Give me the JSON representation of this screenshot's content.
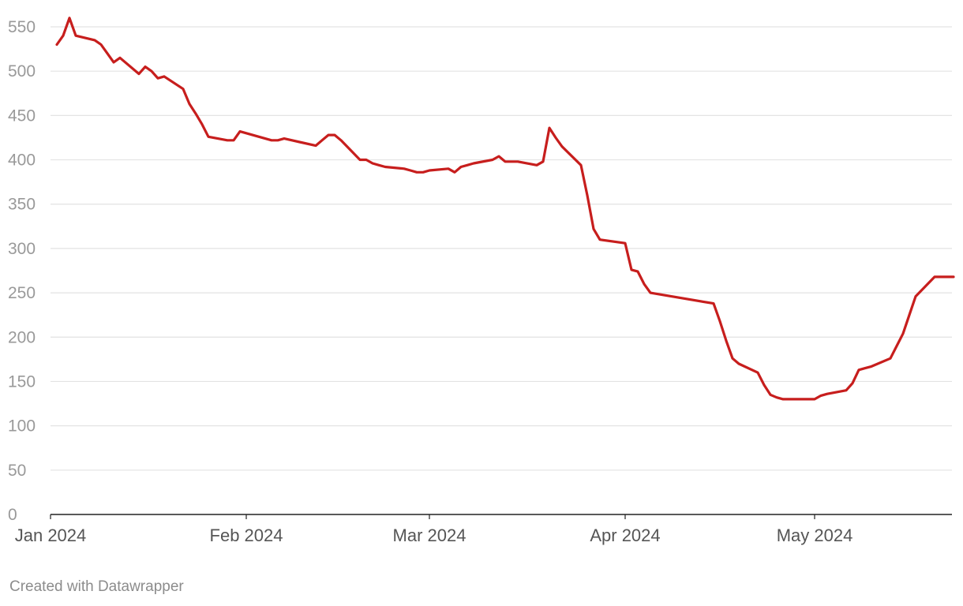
{
  "chart_data": {
    "type": "line",
    "title": "",
    "xlabel": "",
    "ylabel": "",
    "ylim": [
      0,
      560
    ],
    "yticks": [
      0,
      50,
      100,
      150,
      200,
      250,
      300,
      350,
      400,
      450,
      500,
      550
    ],
    "xticks": [
      {
        "date": "2024-01-01",
        "label": "Jan 2024"
      },
      {
        "date": "2024-02-01",
        "label": "Feb 2024"
      },
      {
        "date": "2024-03-01",
        "label": "Mar 2024"
      },
      {
        "date": "2024-04-01",
        "label": "Apr 2024"
      },
      {
        "date": "2024-05-01",
        "label": "May 2024"
      }
    ],
    "grid": true,
    "color": "#c71e1d",
    "series": [
      {
        "x": [
          "2024-01-02",
          "2024-01-03",
          "2024-01-04",
          "2024-01-05",
          "2024-01-08",
          "2024-01-09",
          "2024-01-10",
          "2024-01-11",
          "2024-01-12",
          "2024-01-15",
          "2024-01-16",
          "2024-01-17",
          "2024-01-18",
          "2024-01-19",
          "2024-01-22",
          "2024-01-23",
          "2024-01-24",
          "2024-01-25",
          "2024-01-26",
          "2024-01-29",
          "2024-01-30",
          "2024-01-31",
          "2024-02-05",
          "2024-02-06",
          "2024-02-07",
          "2024-02-12",
          "2024-02-13",
          "2024-02-14",
          "2024-02-15",
          "2024-02-16",
          "2024-02-19",
          "2024-02-20",
          "2024-02-21",
          "2024-02-22",
          "2024-02-23",
          "2024-02-26",
          "2024-02-27",
          "2024-02-28",
          "2024-02-29",
          "2024-03-01",
          "2024-03-04",
          "2024-03-05",
          "2024-03-06",
          "2024-03-07",
          "2024-03-08",
          "2024-03-11",
          "2024-03-12",
          "2024-03-13",
          "2024-03-14",
          "2024-03-15",
          "2024-03-18",
          "2024-03-19",
          "2024-03-20",
          "2024-03-21",
          "2024-03-22",
          "2024-03-25",
          "2024-03-26",
          "2024-03-27",
          "2024-03-28",
          "2024-04-01",
          "2024-04-02",
          "2024-04-03",
          "2024-04-04",
          "2024-04-05",
          "2024-04-15",
          "2024-04-16",
          "2024-04-17",
          "2024-04-18",
          "2024-04-19",
          "2024-04-22",
          "2024-04-23",
          "2024-04-24",
          "2024-04-25",
          "2024-04-26",
          "2024-04-29",
          "2024-04-30",
          "2024-05-01",
          "2024-05-02",
          "2024-05-03",
          "2024-05-06",
          "2024-05-07",
          "2024-05-08",
          "2024-05-09",
          "2024-05-10",
          "2024-05-13",
          "2024-05-14",
          "2024-05-15",
          "2024-05-16",
          "2024-05-17",
          "2024-05-20",
          "2024-05-21",
          "2024-05-22",
          "2024-05-23"
        ],
        "values": [
          530,
          540,
          560,
          540,
          535,
          530,
          520,
          510,
          515,
          497,
          505,
          500,
          492,
          494,
          480,
          463,
          452,
          440,
          426,
          422,
          422,
          432,
          422,
          422,
          424,
          416,
          422,
          428,
          428,
          422,
          400,
          400,
          396,
          394,
          392,
          390,
          388,
          386,
          386,
          388,
          390,
          386,
          392,
          394,
          396,
          400,
          404,
          398,
          398,
          398,
          394,
          398,
          436,
          425,
          415,
          394,
          360,
          322,
          310,
          306,
          276,
          274,
          260,
          250,
          238,
          218,
          196,
          176,
          170,
          160,
          146,
          135,
          132,
          130,
          130,
          130,
          130,
          134,
          136,
          140,
          148,
          163,
          165,
          167,
          176,
          190,
          204,
          225,
          246,
          268,
          268,
          268,
          268
        ]
      }
    ]
  },
  "footer": {
    "credit": "Created with Datawrapper"
  }
}
